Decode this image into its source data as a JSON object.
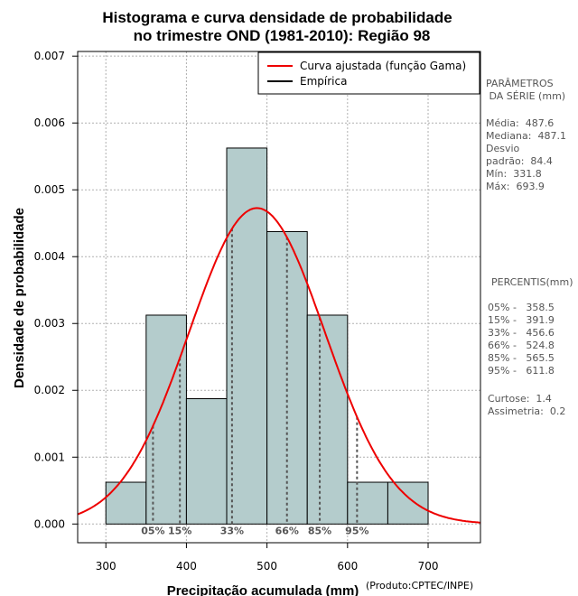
{
  "chart_data": {
    "type": "histogram",
    "title_line1": "Histograma e curva densidade de probabilidade",
    "title_line2": "no trimestre OND (1981-2010): Região 98",
    "xlabel": "Precipitação acumulada (mm)",
    "ylabel": "Densidade de probabilidade",
    "credit": "(Produto:CPTEC/INPE)",
    "xlim": [
      265,
      765
    ],
    "ylim": [
      -0.00028,
      0.00707
    ],
    "x_ticks": [
      300,
      400,
      500,
      600,
      700
    ],
    "y_ticks": [
      0.0,
      0.001,
      0.002,
      0.003,
      0.004,
      0.005,
      0.006,
      0.007
    ],
    "y_tick_labels": [
      "0.000",
      "0.001",
      "0.002",
      "0.003",
      "0.004",
      "0.005",
      "0.006",
      "0.007"
    ],
    "bins": [
      {
        "start": 300,
        "end": 350,
        "density": 0.000625
      },
      {
        "start": 350,
        "end": 400,
        "density": 0.003125
      },
      {
        "start": 400,
        "end": 450,
        "density": 0.001875
      },
      {
        "start": 450,
        "end": 500,
        "density": 0.005625
      },
      {
        "start": 500,
        "end": 550,
        "density": 0.004375
      },
      {
        "start": 550,
        "end": 600,
        "density": 0.003125
      },
      {
        "start": 600,
        "end": 650,
        "density": 0.000625
      },
      {
        "start": 650,
        "end": 700,
        "density": 0.000625
      }
    ],
    "curve": {
      "name": "Curva ajustada (função Gama)",
      "color": "#ee0000",
      "mean": 487.6,
      "sd": 84.4
    },
    "legend": [
      {
        "label": "Curva ajustada (função Gama)",
        "color": "#ee0000"
      },
      {
        "label": "Empírica",
        "color": "#000000"
      }
    ],
    "percentiles": [
      {
        "label": "05%",
        "value": 358.5
      },
      {
        "label": "15%",
        "value": 391.9
      },
      {
        "label": "33%",
        "value": 456.6
      },
      {
        "label": "66%",
        "value": 524.8
      },
      {
        "label": "85%",
        "value": 565.5
      },
      {
        "label": "95%",
        "value": 611.8
      }
    ],
    "bar_color": "#b4cccc",
    "grid": true
  },
  "side_panel": {
    "params_heading": "PARÂMETROS\n DA SÉRIE (mm)",
    "stats_text": "Média:  487.6\nMediana:  487.1\nDesvio\npadrão:  84.4\nMín:  331.8\nMáx:  693.9",
    "pct_heading": "PERCENTIS(mm)",
    "pct_text": "05% -   358.5\n15% -   391.9\n33% -   456.6\n66% -   524.8\n85% -   565.5\n95% -   611.8",
    "shape_text": "Curtose:  1.4\nAssimetria:  0.2"
  }
}
